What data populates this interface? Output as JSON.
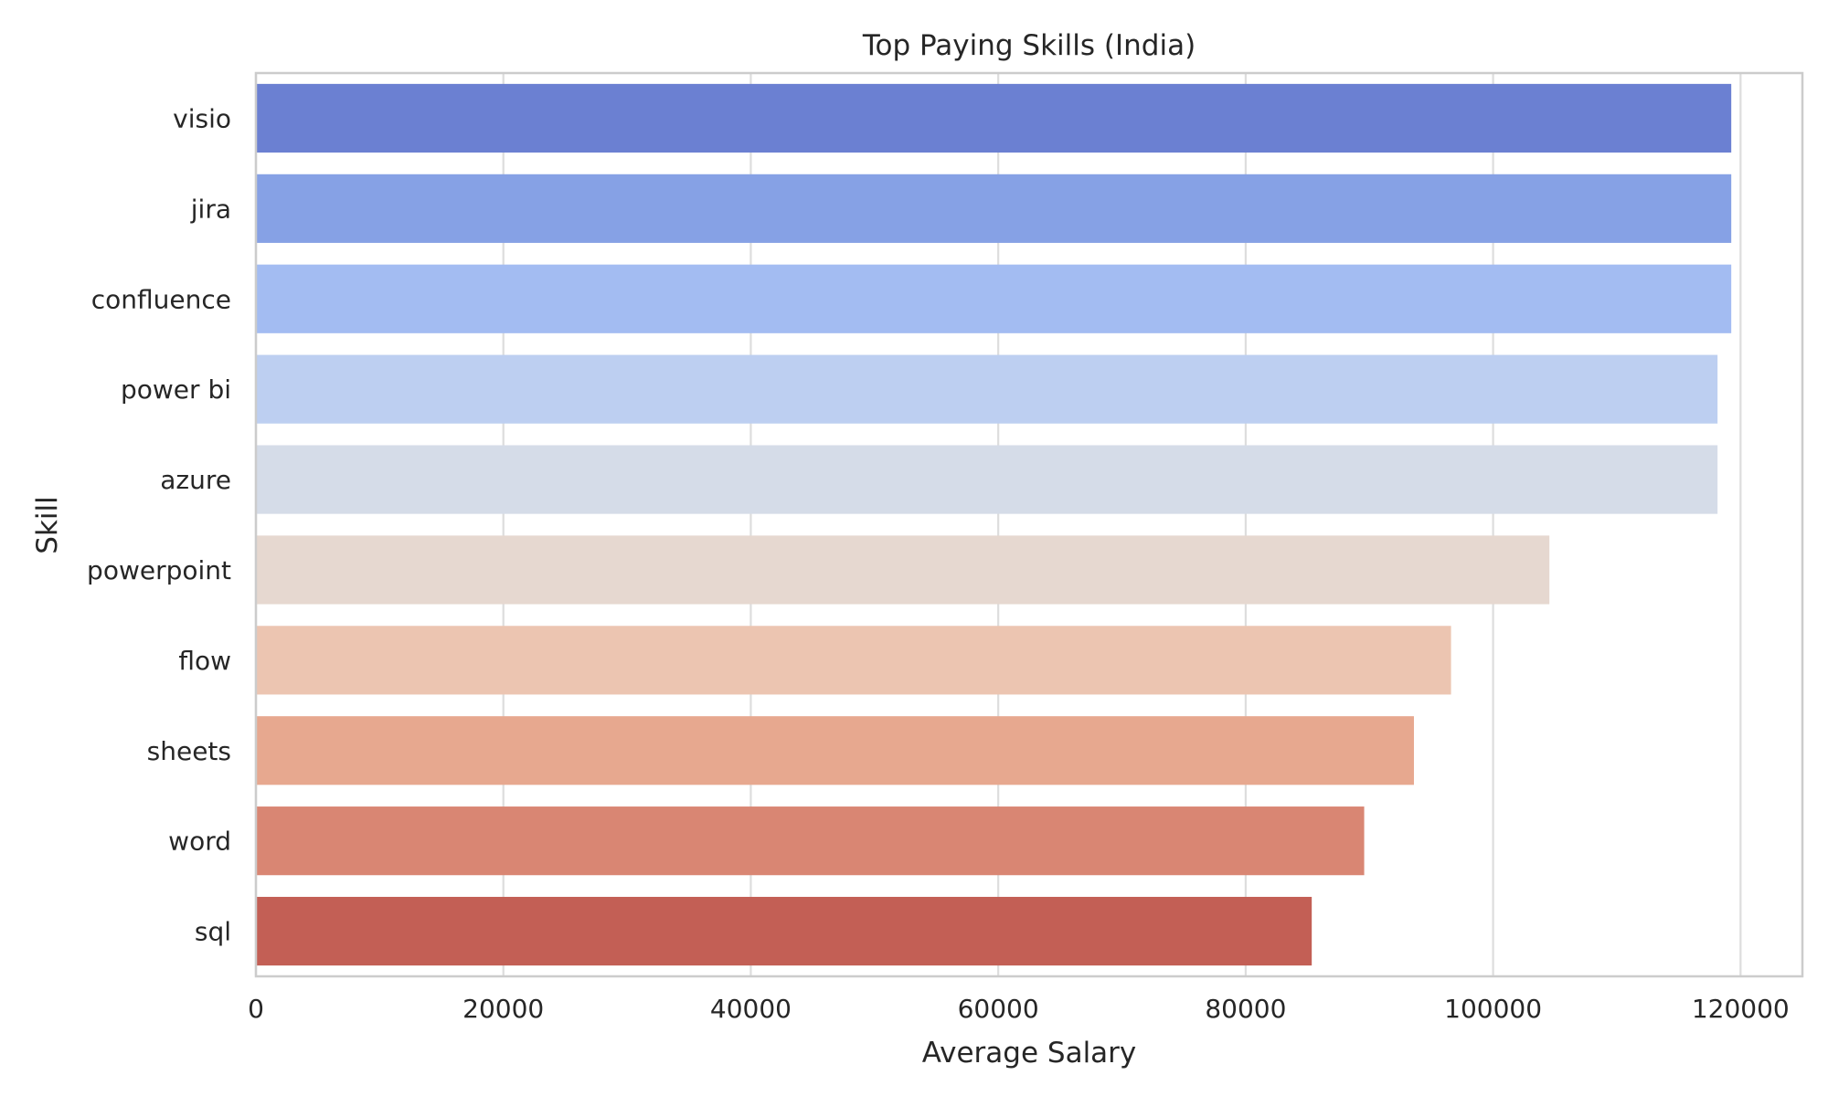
{
  "chart_data": {
    "type": "bar",
    "orientation": "horizontal",
    "title": "Top Paying Skills (India)",
    "xlabel": "Average Salary",
    "ylabel": "Skill",
    "xlim": [
      0,
      125000
    ],
    "xticks": [
      0,
      20000,
      40000,
      60000,
      80000,
      100000,
      120000
    ],
    "grid": true,
    "categories": [
      "visio",
      "jira",
      "confluence",
      "power bi",
      "azure",
      "powerpoint",
      "flow",
      "sheets",
      "word",
      "sql"
    ],
    "values": [
      119250,
      119250,
      119250,
      118140,
      118140,
      104550,
      96600,
      93600,
      89580,
      85340
    ],
    "colors": [
      "#6b80d2",
      "#86a1e5",
      "#a3bcf2",
      "#bdcff1",
      "#d5dce8",
      "#e6d8d0",
      "#ecc5b1",
      "#e7a88f",
      "#d98673",
      "#c35f55"
    ]
  }
}
